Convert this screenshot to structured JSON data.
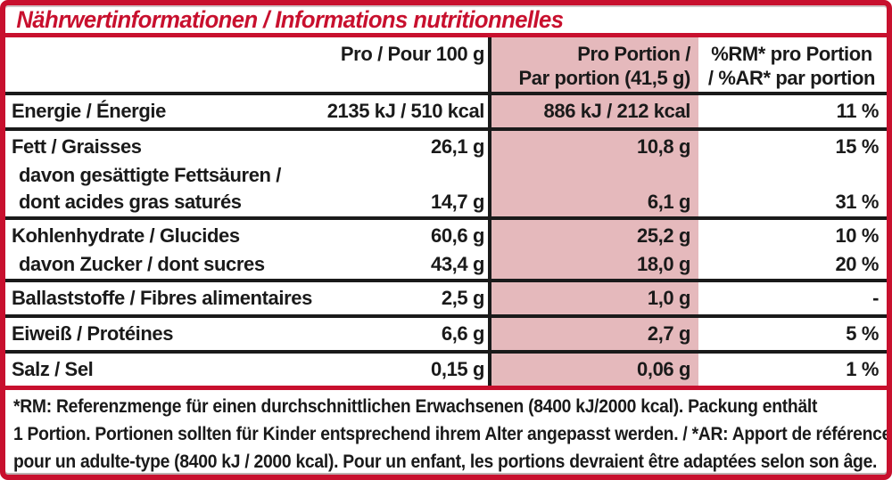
{
  "colors": {
    "red": "#C8102E",
    "pink": "#E5B9BC",
    "ink": "#1A1A1A"
  },
  "title": "Nährwertinformationen / Informations nutritionnelles",
  "table": {
    "headers": {
      "per_100": "Pro / Pour 100 g",
      "per_portion_line1": "Pro Portion /",
      "per_portion_line2": "Par portion (41,5 g)",
      "rm_line1": "%RM* pro Portion",
      "rm_line2": "/ %AR* par portion"
    },
    "rows": [
      {
        "label": "Energie / Énergie",
        "per100": "2135 kJ / 510 kcal",
        "portion": "886 kJ / 212 kcal",
        "rm": "11 %"
      },
      {
        "label": "Fett / Graisses",
        "per100": "26,1 g",
        "portion": "10,8 g",
        "rm": "15 %"
      },
      {
        "label": "davon gesättigte Fettsäuren /",
        "per100": "",
        "portion": "",
        "rm": ""
      },
      {
        "label": "dont acides gras saturés",
        "per100": "14,7 g",
        "portion": "6,1 g",
        "rm": "31 %"
      },
      {
        "label": "Kohlenhydrate / Glucides",
        "per100": "60,6 g",
        "portion": "25,2 g",
        "rm": "10 %"
      },
      {
        "label": "davon Zucker / dont sucres",
        "per100": "43,4 g",
        "portion": "18,0 g",
        "rm": "20 %"
      },
      {
        "label": "Ballaststoffe / Fibres alimentaires",
        "per100": "2,5 g",
        "portion": "1,0 g",
        "rm": "-"
      },
      {
        "label": "Eiweiß / Protéines",
        "per100": "6,6 g",
        "portion": "2,7 g",
        "rm": "5 %"
      },
      {
        "label": "Salz / Sel",
        "per100": "0,15 g",
        "portion": "0,06 g",
        "rm": "1 %"
      }
    ]
  },
  "footnote": {
    "lines": [
      "*RM: Referenzmenge für einen durchschnittlichen Erwachsenen (8400 kJ/2000 kcal). Packung enthält",
      "1 Portion. Portionen sollten für Kinder entsprechend ihrem Alter angepasst werden. / *AR: Apport de référence",
      "pour un adulte-type (8400 kJ / 2000 kcal). Pour un enfant, les portions devraient être adaptées selon son âge."
    ]
  }
}
